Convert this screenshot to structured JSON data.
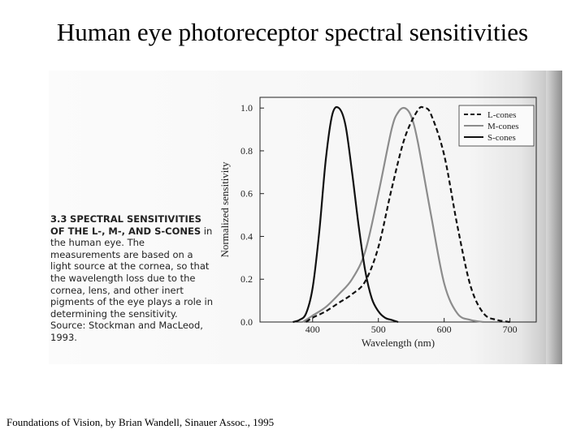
{
  "slide": {
    "title": "Human eye photoreceptor spectral sensitivities",
    "source": "Foundations of Vision, by Brian Wandell, Sinauer Assoc., 1995"
  },
  "figure": {
    "number": "3.3",
    "caption_bold": "SPECTRAL SENSITIVITIES OF THE L-, M-, AND S-CONES",
    "caption_text": "in the human eye. The measurements are based on a light source at the cornea, so that the wavelength loss due to the cornea, lens, and other inert pigments of the eye plays a role in determining the sensitivity. Source: Stockman and MacLeod, 1993."
  },
  "chart_data": {
    "type": "line",
    "xlabel": "Wavelength (nm)",
    "ylabel": "Normalized sensitivity",
    "xlim": [
      320,
      740
    ],
    "ylim": [
      0,
      1.05
    ],
    "xticks": [
      "400",
      "500",
      "600",
      "700"
    ],
    "yticks": [
      "0.0",
      "0.2",
      "0.4",
      "0.6",
      "0.8",
      "1.0"
    ],
    "legend": "top-right",
    "grid": false,
    "series": [
      {
        "name": "L-cones",
        "style": "dashed",
        "color": "#111111",
        "x": [
          390,
          400,
          420,
          440,
          460,
          480,
          500,
          520,
          540,
          560,
          570,
          580,
          600,
          620,
          640,
          660,
          680,
          700
        ],
        "y": [
          0.0,
          0.02,
          0.05,
          0.09,
          0.13,
          0.19,
          0.35,
          0.62,
          0.86,
          0.99,
          1.0,
          0.97,
          0.78,
          0.45,
          0.17,
          0.04,
          0.01,
          0.0
        ]
      },
      {
        "name": "M-cones",
        "style": "solid",
        "color": "#8c8c8c",
        "x": [
          385,
          400,
          420,
          440,
          460,
          480,
          500,
          520,
          530,
          540,
          550,
          560,
          580,
          600,
          620,
          640,
          660
        ],
        "y": [
          0.0,
          0.03,
          0.07,
          0.13,
          0.2,
          0.33,
          0.6,
          0.9,
          0.98,
          1.0,
          0.96,
          0.84,
          0.5,
          0.18,
          0.04,
          0.01,
          0.0
        ]
      },
      {
        "name": "S-cones",
        "style": "solid",
        "color": "#111111",
        "x": [
          370,
          380,
          390,
          400,
          410,
          420,
          430,
          440,
          450,
          460,
          470,
          480,
          490,
          500,
          510,
          520,
          530
        ],
        "y": [
          0.0,
          0.01,
          0.04,
          0.16,
          0.42,
          0.76,
          0.97,
          1.0,
          0.92,
          0.7,
          0.45,
          0.24,
          0.11,
          0.05,
          0.02,
          0.01,
          0.0
        ]
      }
    ]
  }
}
